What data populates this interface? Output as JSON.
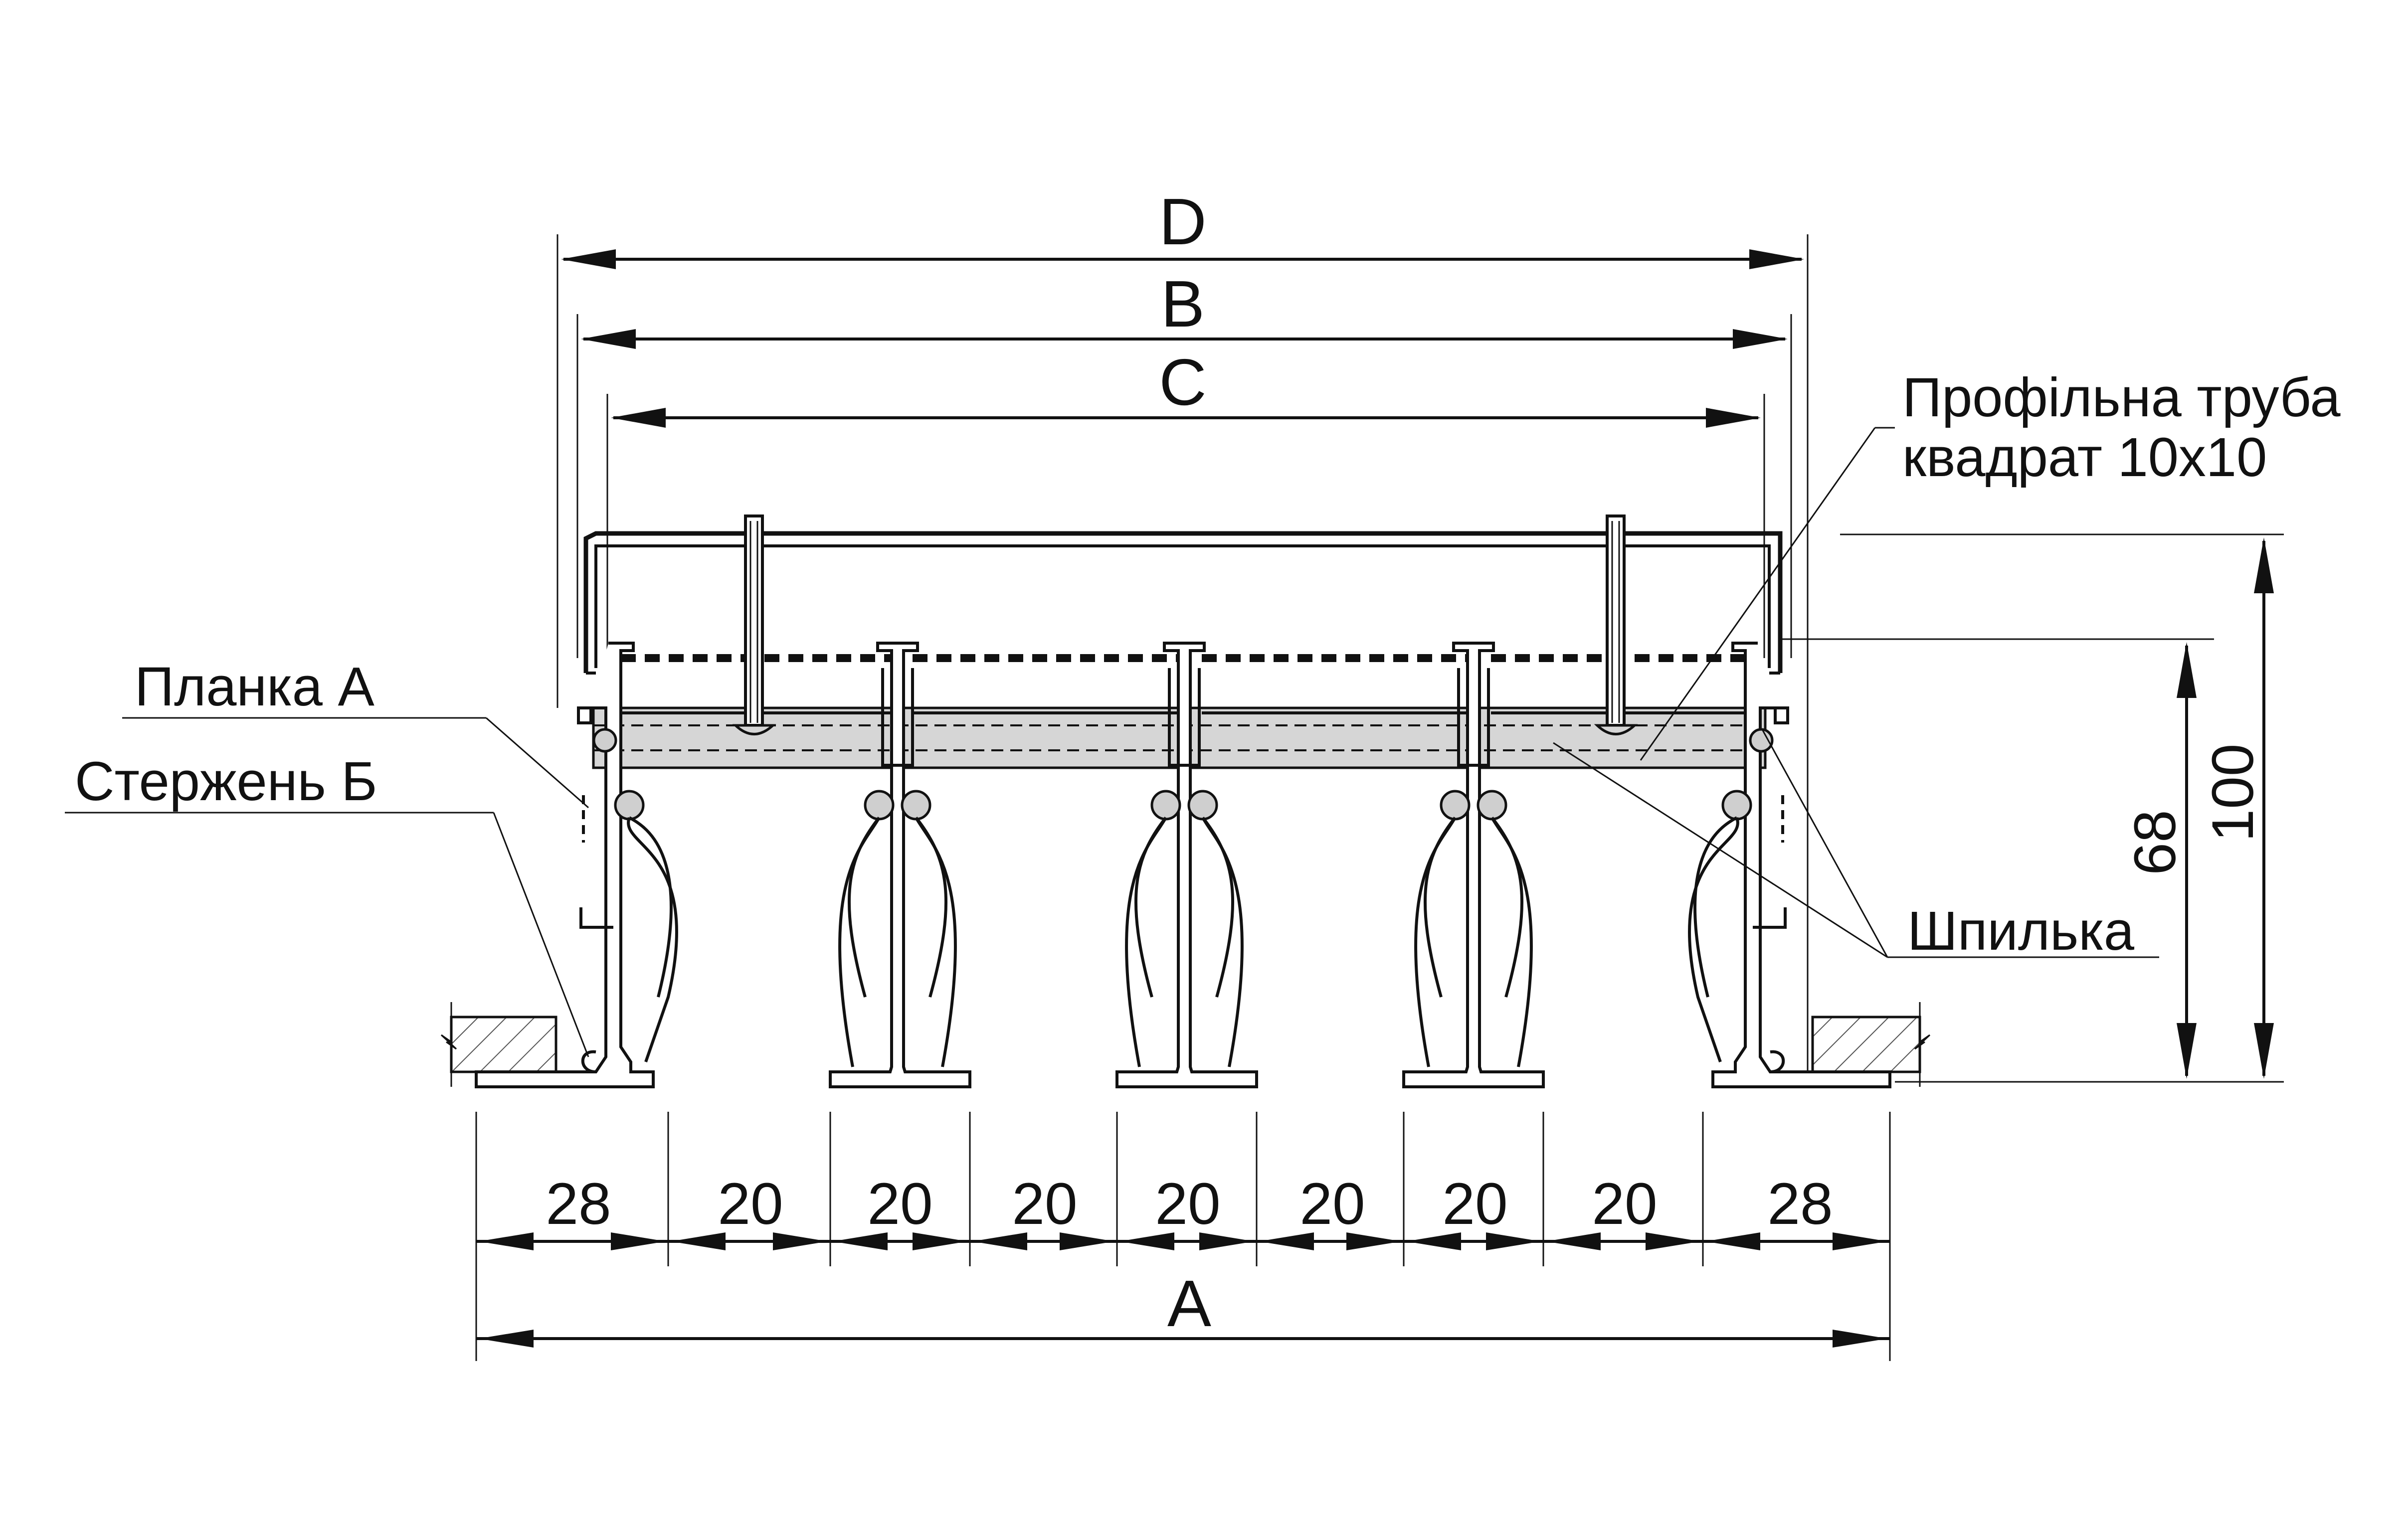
{
  "dimensions": {
    "overall_top": "D",
    "frame_width": "B",
    "inner_width": "C",
    "overall_bottom": "A",
    "height_total": "100",
    "height_frame": "68",
    "segments": [
      "28",
      "20",
      "20",
      "20",
      "20",
      "20",
      "20",
      "20",
      "28"
    ]
  },
  "callouts": {
    "plate": "Планка А",
    "rod": "Стержень Б",
    "tube_line1": "Профільна труба",
    "tube_line2": "квадрат 10х10",
    "stud": "Шпилька"
  }
}
